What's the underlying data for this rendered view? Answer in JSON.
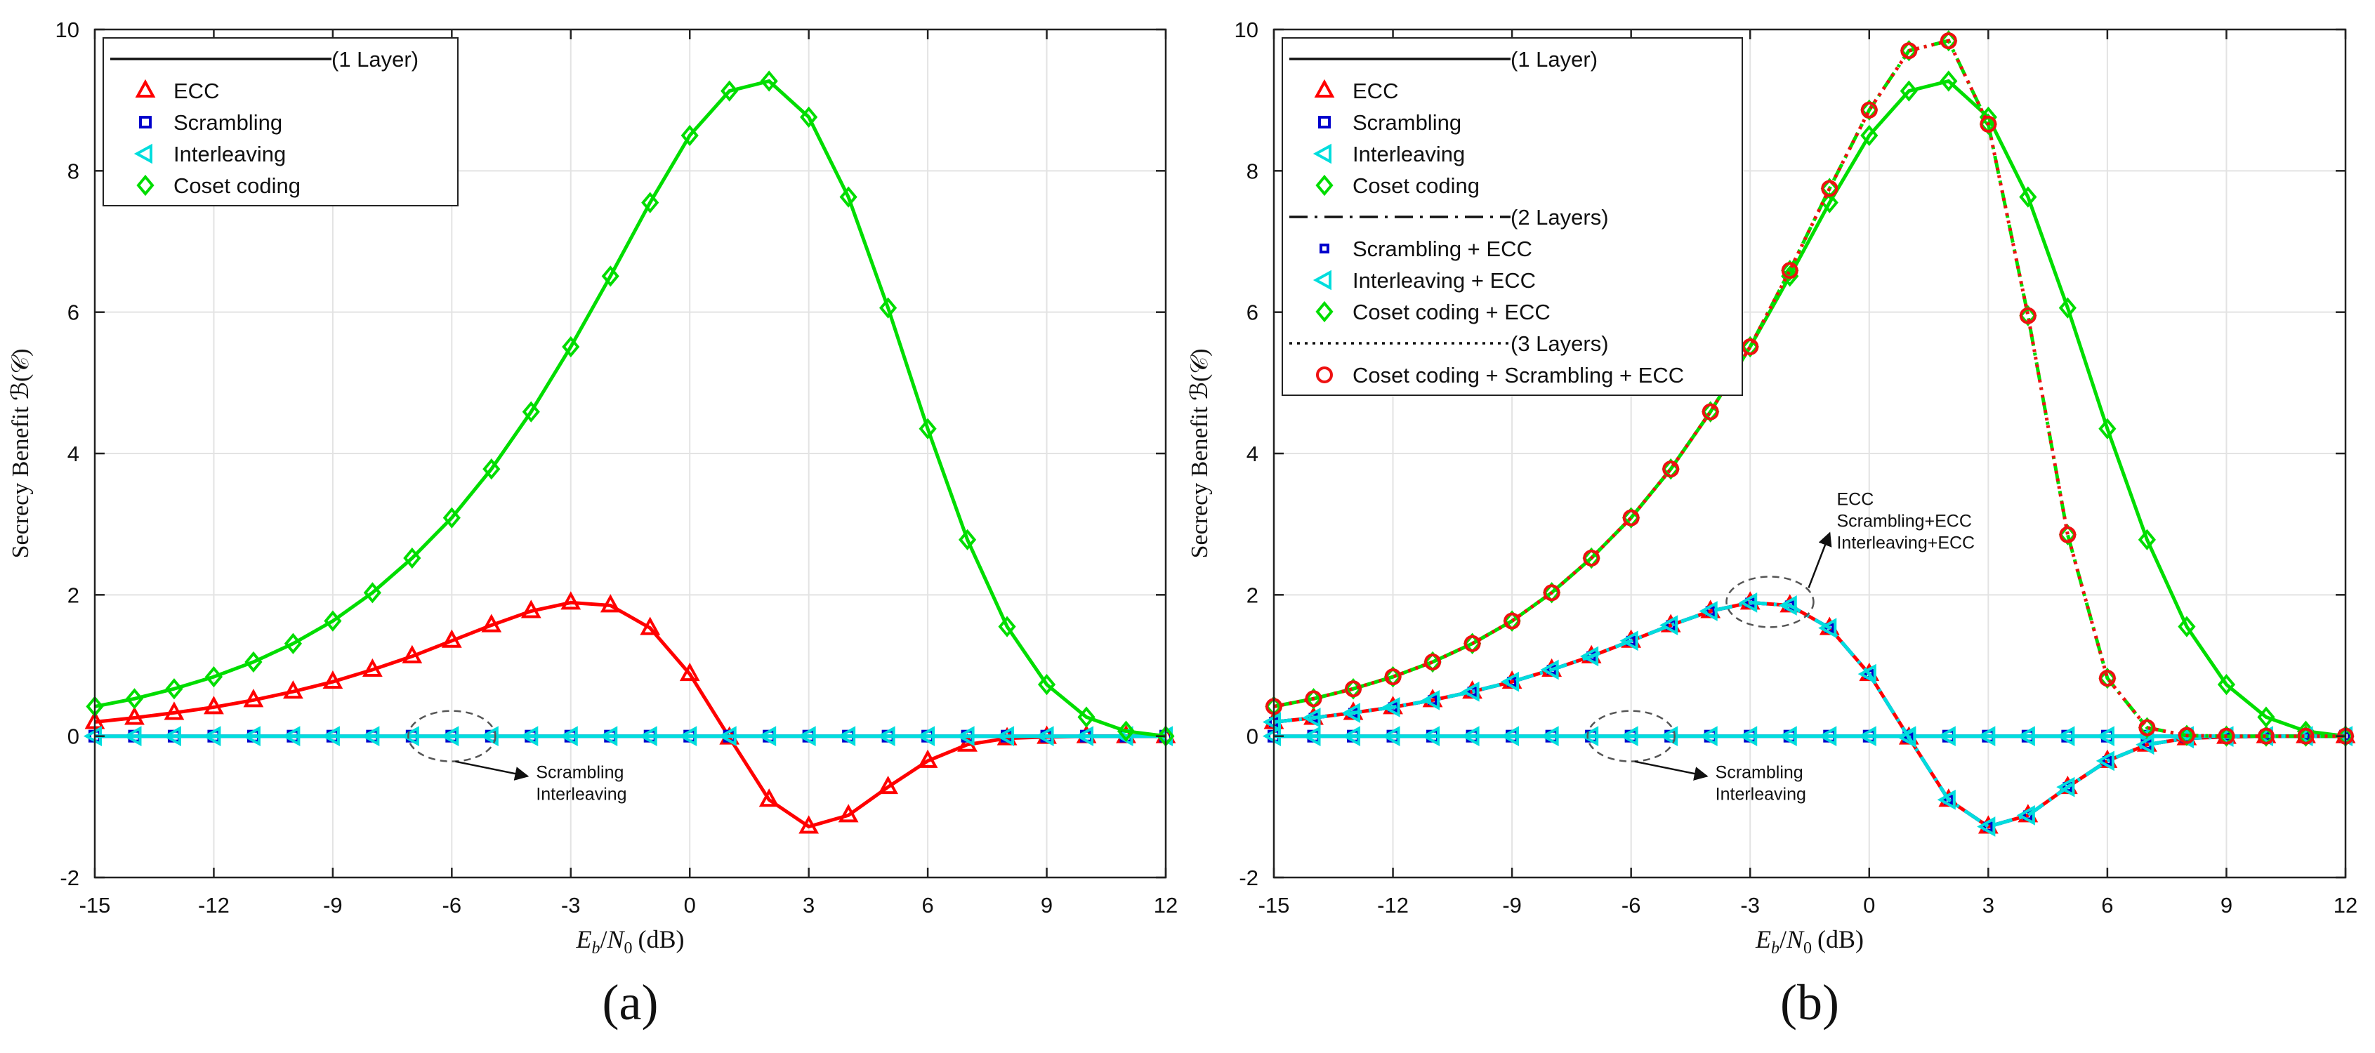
{
  "chart_data": [
    {
      "type": "line",
      "panel_label": "(a)",
      "xlabel": "E_b/N_0 (dB)",
      "xlabel_parts": {
        "e": "E",
        "b": "b",
        "slash": "/",
        "n": "N",
        "zero": "0",
        "unit": "(dB)"
      },
      "ylabel": "Secrecy Benefit ℬ(𝒞)",
      "xlim": [
        -15,
        12
      ],
      "ylim": [
        -2,
        10
      ],
      "xticks": [
        "-15",
        "-12",
        "-9",
        "-6",
        "-3",
        "0",
        "3",
        "6",
        "9",
        "12"
      ],
      "yticks": [
        "-2",
        "0",
        "2",
        "4",
        "6",
        "8",
        "10"
      ],
      "grid": true,
      "legend_position": "top-left",
      "legend_groups": [
        {
          "title": "(1 Layer)",
          "line": "solid",
          "entries": [
            "ECC",
            "Scrambling",
            "Interleaving",
            "Coset coding"
          ]
        }
      ],
      "x": [
        -15,
        -14,
        -13,
        -12,
        -11,
        -10,
        -9,
        -8,
        -7,
        -6,
        -5,
        -4,
        -3,
        -2,
        -1,
        0,
        1,
        2,
        3,
        4,
        5,
        6,
        7,
        8,
        9,
        10,
        11,
        12
      ],
      "series": [
        {
          "name": "ECC",
          "color": "#ff0000",
          "marker": "triangle",
          "dash": "solid",
          "values": [
            0.2,
            0.26,
            0.33,
            0.41,
            0.51,
            0.63,
            0.77,
            0.94,
            1.13,
            1.35,
            1.57,
            1.77,
            1.89,
            1.85,
            1.53,
            0.88,
            -0.02,
            -0.9,
            -1.28,
            -1.12,
            -0.72,
            -0.35,
            -0.12,
            -0.03,
            -0.01,
            0.0,
            0.0,
            0.0
          ]
        },
        {
          "name": "Scrambling",
          "color": "#0000cc",
          "marker": "square",
          "dash": "solid",
          "values": [
            0,
            0,
            0,
            0,
            0,
            0,
            0,
            0,
            0,
            0,
            0,
            0,
            0,
            0,
            0,
            0,
            0,
            0,
            0,
            0,
            0,
            0,
            0,
            0,
            0,
            0,
            0,
            0
          ]
        },
        {
          "name": "Interleaving",
          "color": "#00dddd",
          "marker": "triangle-left",
          "dash": "solid",
          "values": [
            0,
            0,
            0,
            0,
            0,
            0,
            0,
            0,
            0,
            0,
            0,
            0,
            0,
            0,
            0,
            0,
            0,
            0,
            0,
            0,
            0,
            0,
            0,
            0,
            0,
            0,
            0,
            0
          ]
        },
        {
          "name": "Coset coding",
          "color": "#00dd00",
          "marker": "diamond",
          "dash": "solid",
          "values": [
            0.42,
            0.53,
            0.67,
            0.84,
            1.05,
            1.31,
            1.63,
            2.03,
            2.52,
            3.09,
            3.78,
            4.59,
            5.51,
            6.51,
            7.55,
            8.5,
            9.13,
            9.27,
            8.76,
            7.63,
            6.06,
            4.35,
            2.78,
            1.55,
            0.73,
            0.27,
            0.07,
            0.0
          ]
        }
      ],
      "annotations": [
        {
          "lines": [
            "Scrambling",
            "Interleaving"
          ],
          "target_x": -6,
          "target_y": 0
        }
      ]
    },
    {
      "type": "line",
      "panel_label": "(b)",
      "xlabel": "E_b/N_0 (dB)",
      "xlabel_parts": {
        "e": "E",
        "b": "b",
        "slash": "/",
        "n": "N",
        "zero": "0",
        "unit": "(dB)"
      },
      "ylabel": "Secrecy Benefit ℬ(𝒞)",
      "xlim": [
        -15,
        12
      ],
      "ylim": [
        -2,
        10
      ],
      "xticks": [
        "-15",
        "-12",
        "-9",
        "-6",
        "-3",
        "0",
        "3",
        "6",
        "9",
        "12"
      ],
      "yticks": [
        "-2",
        "0",
        "2",
        "4",
        "6",
        "8",
        "10"
      ],
      "grid": true,
      "legend_position": "top-left",
      "legend_groups": [
        {
          "title": "(1 Layer)",
          "line": "solid",
          "entries": [
            "ECC",
            "Scrambling",
            "Interleaving",
            "Coset coding"
          ]
        },
        {
          "title": "(2 Layers)",
          "line": "dashdot",
          "entries": [
            "Scrambling + ECC",
            "Interleaving + ECC",
            "Coset coding + ECC"
          ]
        },
        {
          "title": "(3 Layers)",
          "line": "dotted",
          "entries": [
            "Coset coding + Scrambling + ECC"
          ]
        }
      ],
      "x": [
        -15,
        -14,
        -13,
        -12,
        -11,
        -10,
        -9,
        -8,
        -7,
        -6,
        -5,
        -4,
        -3,
        -2,
        -1,
        0,
        1,
        2,
        3,
        4,
        5,
        6,
        7,
        8,
        9,
        10,
        11,
        12
      ],
      "series": [
        {
          "name": "ECC",
          "color": "#ff0000",
          "marker": "triangle",
          "dash": "solid",
          "values": [
            0.2,
            0.26,
            0.33,
            0.41,
            0.51,
            0.63,
            0.77,
            0.94,
            1.13,
            1.35,
            1.57,
            1.77,
            1.89,
            1.85,
            1.53,
            0.88,
            -0.02,
            -0.9,
            -1.28,
            -1.12,
            -0.72,
            -0.35,
            -0.12,
            -0.03,
            -0.01,
            0.0,
            0.0,
            0.0
          ]
        },
        {
          "name": "Scrambling",
          "color": "#0000cc",
          "marker": "square",
          "dash": "solid",
          "values": [
            0,
            0,
            0,
            0,
            0,
            0,
            0,
            0,
            0,
            0,
            0,
            0,
            0,
            0,
            0,
            0,
            0,
            0,
            0,
            0,
            0,
            0,
            0,
            0,
            0,
            0,
            0,
            0
          ]
        },
        {
          "name": "Interleaving",
          "color": "#00dddd",
          "marker": "triangle-left",
          "dash": "solid",
          "values": [
            0,
            0,
            0,
            0,
            0,
            0,
            0,
            0,
            0,
            0,
            0,
            0,
            0,
            0,
            0,
            0,
            0,
            0,
            0,
            0,
            0,
            0,
            0,
            0,
            0,
            0,
            0,
            0
          ]
        },
        {
          "name": "Coset coding",
          "color": "#00dd00",
          "marker": "diamond",
          "dash": "solid",
          "values": [
            0.42,
            0.53,
            0.67,
            0.84,
            1.05,
            1.31,
            1.63,
            2.03,
            2.52,
            3.09,
            3.78,
            4.59,
            5.51,
            6.51,
            7.55,
            8.5,
            9.13,
            9.27,
            8.76,
            7.63,
            6.06,
            4.35,
            2.78,
            1.55,
            0.73,
            0.27,
            0.07,
            0.0
          ]
        },
        {
          "name": "Scrambling + ECC",
          "color": "#0000cc",
          "marker": "square-small",
          "dash": "dashdot",
          "values": [
            0.2,
            0.26,
            0.33,
            0.41,
            0.51,
            0.63,
            0.77,
            0.94,
            1.13,
            1.35,
            1.57,
            1.77,
            1.89,
            1.85,
            1.53,
            0.88,
            -0.02,
            -0.9,
            -1.28,
            -1.12,
            -0.72,
            -0.35,
            -0.12,
            -0.03,
            -0.01,
            0.0,
            0.0,
            0.0
          ]
        },
        {
          "name": "Interleaving + ECC",
          "color": "#00dddd",
          "marker": "triangle-left",
          "dash": "dashdot",
          "values": [
            0.2,
            0.26,
            0.33,
            0.41,
            0.51,
            0.63,
            0.77,
            0.94,
            1.13,
            1.35,
            1.57,
            1.77,
            1.89,
            1.85,
            1.53,
            0.88,
            -0.02,
            -0.9,
            -1.28,
            -1.12,
            -0.72,
            -0.35,
            -0.12,
            -0.03,
            -0.01,
            0.0,
            0.0,
            0.0
          ]
        },
        {
          "name": "Coset coding + ECC",
          "color": "#00dd00",
          "marker": "diamond",
          "dash": "dashdot",
          "values": [
            0.42,
            0.53,
            0.67,
            0.84,
            1.05,
            1.31,
            1.63,
            2.03,
            2.52,
            3.09,
            3.78,
            4.59,
            5.51,
            6.59,
            7.75,
            8.86,
            9.7,
            9.84,
            8.66,
            5.95,
            2.85,
            0.82,
            0.12,
            0.01,
            0.0,
            0.0,
            0.0,
            0.0
          ]
        },
        {
          "name": "Coset coding + Scrambling + ECC",
          "color": "#ee1111",
          "marker": "circle",
          "dash": "dotted",
          "values": [
            0.42,
            0.53,
            0.67,
            0.84,
            1.05,
            1.31,
            1.63,
            2.03,
            2.52,
            3.09,
            3.78,
            4.59,
            5.51,
            6.59,
            7.75,
            8.86,
            9.7,
            9.84,
            8.66,
            5.95,
            2.85,
            0.82,
            0.12,
            0.01,
            0.0,
            0.0,
            0.0,
            0.0
          ]
        }
      ],
      "annotations": [
        {
          "lines": [
            "ECC",
            "Scrambling+ECC",
            "Interleaving+ECC"
          ],
          "target_x": -2.5,
          "target_y": 1.9
        },
        {
          "lines": [
            "Scrambling",
            "Interleaving"
          ],
          "target_x": -6,
          "target_y": 0
        }
      ]
    }
  ]
}
